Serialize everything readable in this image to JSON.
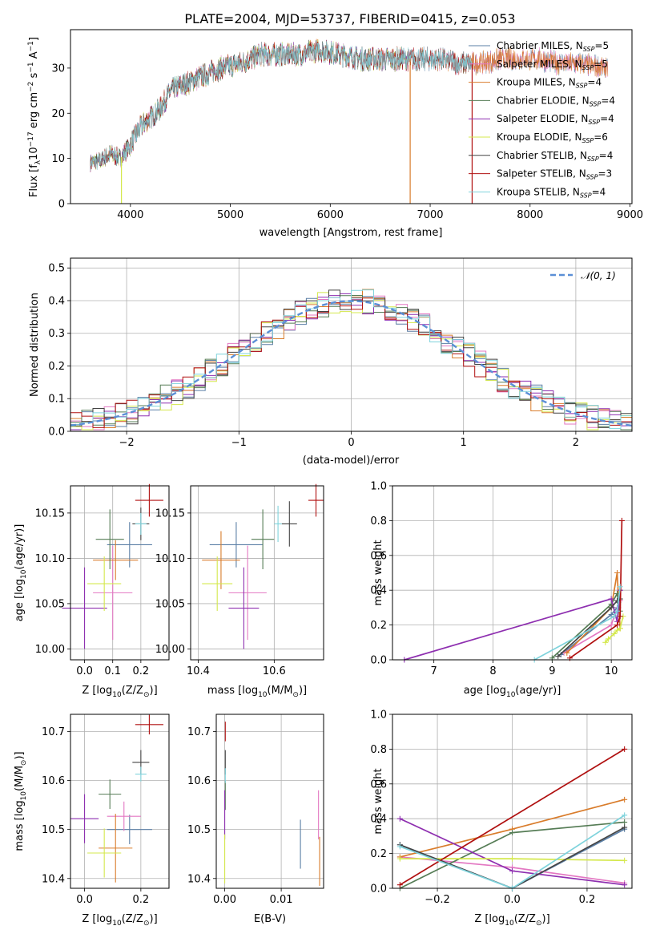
{
  "figure_title": "PLATE=2004, MJD=53737, FIBERID=0415, z=0.053",
  "colors": {
    "Chabrier MILES": "#5b7fa6",
    "Salpeter MILES": "#e377c2",
    "Kroupa MILES": "#d97c2b",
    "Chabrier ELODIE": "#557c55",
    "Salpeter ELODIE": "#8e2fb0",
    "Kroupa ELODIE": "#d4e84c",
    "Chabrier STELIB": "#444444",
    "Salpeter STELIB": "#b01010",
    "Kroupa STELIB": "#7fd3dc",
    "ncurve": "#5b8fd6"
  },
  "chart_data": [
    {
      "id": "spectrum",
      "type": "line",
      "title": "PLATE=2004, MJD=53737, FIBERID=0415, z=0.053",
      "xlabel": "wavelength [Angstrom, rest frame]",
      "ylabel_main": "Flux [f",
      "ylabel_sub1": "λ",
      "ylabel_mid": "10",
      "ylabel_sup1": "−17",
      "ylabel_mid2": " erg cm",
      "ylabel_sup2": "−2",
      "ylabel_mid3": " s",
      "ylabel_sup3": "−1",
      "ylabel_mid4": " A",
      "ylabel_sup4": "−1",
      "ylabel_end": "]",
      "xlim": [
        3400,
        9020
      ],
      "ylim": [
        0,
        38.5
      ],
      "xticks": [
        4000,
        5000,
        6000,
        7000,
        8000,
        9000
      ],
      "yticks": [
        0,
        10,
        20,
        30
      ],
      "grid": false,
      "legend_position": "top-right",
      "continuum": {
        "x": [
          3600,
          3700,
          3800,
          3900,
          4000,
          4100,
          4200,
          4300,
          4400,
          4500,
          4700,
          4900,
          5100,
          5300,
          5500,
          5700,
          5900,
          6100,
          6300,
          6500,
          6700,
          6900,
          7100,
          7300,
          7500,
          7700,
          7900,
          8100,
          8300,
          8500,
          8750
        ],
        "y": [
          9,
          9.5,
          11,
          10,
          13,
          17,
          19,
          21,
          25,
          26,
          28,
          30,
          31,
          33,
          33,
          33,
          34,
          33,
          32,
          32,
          32,
          32,
          32,
          31,
          31,
          32,
          32,
          32,
          31,
          31,
          30
        ]
      },
      "legend": [
        {
          "name": "Chabrier MILES",
          "nssp": "5",
          "x_end": 8780
        },
        {
          "name": "Salpeter MILES",
          "nssp": "5",
          "x_end": 8780
        },
        {
          "name": "Kroupa MILES",
          "nssp": "4",
          "x_end": 8780
        },
        {
          "name": "Chabrier ELODIE",
          "nssp": "4",
          "x_end": 6800
        },
        {
          "name": "Salpeter ELODIE",
          "nssp": "4",
          "x_end": 6800
        },
        {
          "name": "Kroupa ELODIE",
          "nssp": "6",
          "x_end": 6800
        },
        {
          "name": "Chabrier STELIB",
          "nssp": "4",
          "x_end": 7420
        },
        {
          "name": "Salpeter STELIB",
          "nssp": "3",
          "x_end": 7420
        },
        {
          "name": "Kroupa STELIB",
          "nssp": "4",
          "x_end": 7420
        }
      ]
    },
    {
      "id": "residuals",
      "type": "histogram",
      "xlabel": "(data-model)/error",
      "ylabel": "Normed distribution",
      "xlim": [
        -2.5,
        2.5
      ],
      "ylim": [
        0,
        0.53
      ],
      "xticks": [
        -2,
        -1,
        0,
        1,
        2
      ],
      "xtick_labels": [
        "−2",
        "−1",
        "0",
        "1",
        "2"
      ],
      "yticks": [
        0.0,
        0.1,
        0.2,
        0.3,
        0.4,
        0.5
      ],
      "ytick_labels": [
        "0.0",
        "0.1",
        "0.2",
        "0.3",
        "0.4",
        "0.5"
      ],
      "grid": true,
      "normal_curve_label": "𝒩(0, 1)",
      "bin_width": 0.1
    },
    {
      "id": "age_vs_Z",
      "type": "errorbar",
      "xlabel": "Z [log",
      "xlabel_sub": "10",
      "xlabel_end": "(Z/Z",
      "xlabel_sun": "⊙",
      "xlabel_close": ")]",
      "ylabel": "age  [log",
      "ylabel_sub": "10",
      "ylabel_end": "(age/yr)]",
      "xlim": [
        -0.05,
        0.3
      ],
      "ylim": [
        9.988,
        10.18
      ],
      "xticks": [
        0.0,
        0.1,
        0.2
      ],
      "xtick_labels": [
        "0.0",
        "0.1",
        "0.2"
      ],
      "yticks": [
        10.0,
        10.05,
        10.1,
        10.15
      ],
      "ytick_labels": [
        "10.00",
        "10.05",
        "10.10",
        "10.15"
      ],
      "points": [
        {
          "series": "Chabrier MILES",
          "x": 0.16,
          "xerr": 0.08,
          "y": 10.115,
          "yerr": 0.025
        },
        {
          "series": "Salpeter MILES",
          "x": 0.1,
          "xerr": 0.07,
          "y": 10.062,
          "yerr": 0.052
        },
        {
          "series": "Kroupa MILES",
          "x": 0.11,
          "xerr": 0.08,
          "y": 10.098,
          "yerr": 0.022
        },
        {
          "series": "Chabrier ELODIE",
          "x": 0.09,
          "xerr": 0.05,
          "y": 10.121,
          "yerr": 0.033
        },
        {
          "series": "Salpeter ELODIE",
          "x": 0.0,
          "xerr": 0.08,
          "y": 10.045,
          "yerr": 0.045
        },
        {
          "series": "Kroupa ELODIE",
          "x": 0.07,
          "xerr": 0.06,
          "y": 10.072,
          "yerr": 0.03
        },
        {
          "series": "Chabrier STELIB",
          "x": 0.2,
          "xerr": 0.03,
          "y": 10.138,
          "yerr": 0.018
        },
        {
          "series": "Salpeter STELIB",
          "x": 0.23,
          "xerr": 0.05,
          "y": 10.164,
          "yerr": 0.018
        },
        {
          "series": "Kroupa STELIB",
          "x": 0.2,
          "xerr": 0.02,
          "y": 10.138,
          "yerr": 0.012
        }
      ]
    },
    {
      "id": "age_vs_mass",
      "type": "errorbar",
      "xlabel": "mass [log",
      "xlabel_sub": "10",
      "xlabel_end": "(M/M",
      "xlabel_sun": "⊙",
      "xlabel_close": ")]",
      "xlim": [
        10.38,
        10.73
      ],
      "ylim": [
        9.988,
        10.18
      ],
      "xticks": [
        10.4,
        10.6
      ],
      "xtick_labels": [
        "10.4",
        "10.6"
      ],
      "yticks": [
        10.0,
        10.05,
        10.1,
        10.15
      ],
      "ytick_labels": [
        "10.00",
        "10.05",
        "10.10",
        "10.15"
      ],
      "points": [
        {
          "series": "Chabrier MILES",
          "x": 10.5,
          "xerr": 0.07,
          "y": 10.115,
          "yerr": 0.025
        },
        {
          "series": "Salpeter MILES",
          "x": 10.53,
          "xerr": 0.05,
          "y": 10.062,
          "yerr": 0.052
        },
        {
          "series": "Kroupa MILES",
          "x": 10.46,
          "xerr": 0.05,
          "y": 10.098,
          "yerr": 0.032
        },
        {
          "series": "Chabrier ELODIE",
          "x": 10.57,
          "xerr": 0.03,
          "y": 10.121,
          "yerr": 0.033
        },
        {
          "series": "Salpeter ELODIE",
          "x": 10.52,
          "xerr": 0.04,
          "y": 10.045,
          "yerr": 0.045
        },
        {
          "series": "Kroupa ELODIE",
          "x": 10.45,
          "xerr": 0.04,
          "y": 10.072,
          "yerr": 0.03
        },
        {
          "series": "Chabrier STELIB",
          "x": 10.64,
          "xerr": 0.02,
          "y": 10.138,
          "yerr": 0.025
        },
        {
          "series": "Salpeter STELIB",
          "x": 10.71,
          "xerr": 0.02,
          "y": 10.164,
          "yerr": 0.018
        },
        {
          "series": "Kroupa STELIB",
          "x": 10.61,
          "xerr": 0.01,
          "y": 10.138,
          "yerr": 0.02
        }
      ]
    },
    {
      "id": "mass_vs_Z",
      "type": "errorbar",
      "xlabel": "Z [log",
      "xlabel_sub": "10",
      "xlabel_end": "(Z/Z",
      "xlabel_sun": "⊙",
      "xlabel_close": ")]",
      "ylabel": "mass [log",
      "ylabel_sub": "10",
      "ylabel_end": "(M/M",
      "ylabel_sun": "⊙",
      "ylabel_close": ")]",
      "xlim": [
        -0.05,
        0.3
      ],
      "ylim": [
        10.38,
        10.735
      ],
      "xticks": [
        0.0,
        0.2
      ],
      "xtick_labels": [
        "0.0",
        "0.2"
      ],
      "yticks": [
        10.4,
        10.5,
        10.6,
        10.7
      ],
      "ytick_labels": [
        "10.4",
        "10.5",
        "10.6",
        "10.7"
      ],
      "points": [
        {
          "series": "Chabrier MILES",
          "x": 0.16,
          "xerr": 0.08,
          "y": 10.5,
          "yerr": 0.03
        },
        {
          "series": "Salpeter MILES",
          "x": 0.14,
          "xerr": 0.06,
          "y": 10.527,
          "yerr": 0.03
        },
        {
          "series": "Kroupa MILES",
          "x": 0.11,
          "xerr": 0.06,
          "y": 10.462,
          "yerr": 0.07
        },
        {
          "series": "Chabrier ELODIE",
          "x": 0.09,
          "xerr": 0.04,
          "y": 10.572,
          "yerr": 0.03
        },
        {
          "series": "Salpeter ELODIE",
          "x": 0.0,
          "xerr": 0.05,
          "y": 10.522,
          "yerr": 0.05
        },
        {
          "series": "Kroupa ELODIE",
          "x": 0.07,
          "xerr": 0.06,
          "y": 10.452,
          "yerr": 0.05
        },
        {
          "series": "Chabrier STELIB",
          "x": 0.2,
          "xerr": 0.03,
          "y": 10.637,
          "yerr": 0.025
        },
        {
          "series": "Salpeter STELIB",
          "x": 0.23,
          "xerr": 0.05,
          "y": 10.714,
          "yerr": 0.02
        },
        {
          "series": "Kroupa STELIB",
          "x": 0.2,
          "xerr": 0.02,
          "y": 10.613,
          "yerr": 0.015
        }
      ]
    },
    {
      "id": "mass_vs_ebv",
      "type": "errorbar",
      "xlabel": "E(B-V)",
      "xlim": [
        -0.0015,
        0.0175
      ],
      "ylim": [
        10.38,
        10.735
      ],
      "xticks": [
        0.0,
        0.01
      ],
      "xtick_labels": [
        "0.00",
        "0.01"
      ],
      "yticks": [
        10.4,
        10.5,
        10.6,
        10.7
      ],
      "ytick_labels": [
        "10.4",
        "10.5",
        "10.6",
        "10.7"
      ],
      "points": [
        {
          "series": "Chabrier MILES",
          "x": 0.0134,
          "xerr": 0,
          "y": 10.47,
          "yerr": 0.05
        },
        {
          "series": "Salpeter MILES",
          "x": 0.0166,
          "xerr": 0,
          "y": 10.53,
          "yerr": 0.05
        },
        {
          "series": "Kroupa MILES",
          "x": 0.0168,
          "xerr": 0,
          "y": 10.435,
          "yerr": 0.05
        },
        {
          "series": "Chabrier ELODIE",
          "x": 0.0001,
          "xerr": 0,
          "y": 10.57,
          "yerr": 0.03
        },
        {
          "series": "Salpeter ELODIE",
          "x": 0.0,
          "xerr": 0,
          "y": 10.53,
          "yerr": 0.05
        },
        {
          "series": "Kroupa ELODIE",
          "x": 0.0,
          "xerr": 0,
          "y": 10.44,
          "yerr": 0.05
        },
        {
          "series": "Chabrier STELIB",
          "x": 0.0001,
          "xerr": 0,
          "y": 10.637,
          "yerr": 0.025
        },
        {
          "series": "Salpeter STELIB",
          "x": 0.0001,
          "xerr": 0,
          "y": 10.7,
          "yerr": 0.02
        },
        {
          "series": "Kroupa STELIB",
          "x": 0.0001,
          "xerr": 0,
          "y": 10.61,
          "yerr": 0.015
        }
      ]
    },
    {
      "id": "weight_vs_age",
      "type": "line",
      "xlabel": "age  [log",
      "xlabel_sub": "10",
      "xlabel_end": "(age/yr)]",
      "ylabel": "mass weight",
      "xlim": [
        6.3,
        10.35
      ],
      "ylim": [
        0,
        1.0
      ],
      "xticks": [
        7,
        8,
        9,
        10
      ],
      "yticks": [
        0.0,
        0.2,
        0.4,
        0.6,
        0.8,
        1.0
      ],
      "ytick_labels": [
        "0.0",
        "0.2",
        "0.4",
        "0.6",
        "0.8",
        "1.0"
      ],
      "grid": true,
      "series": [
        {
          "name": "Chabrier MILES",
          "x": [
            9.15,
            10.0,
            10.1,
            10.12,
            10.15
          ],
          "y": [
            0.03,
            0.26,
            0.3,
            0.33,
            0.4
          ]
        },
        {
          "name": "Salpeter MILES",
          "x": [
            9.2,
            10.0,
            10.05,
            10.12,
            10.15
          ],
          "y": [
            0.04,
            0.2,
            0.25,
            0.3,
            0.34
          ]
        },
        {
          "name": "Kroupa MILES",
          "x": [
            9.25,
            10.0,
            10.1,
            10.15
          ],
          "y": [
            0.04,
            0.3,
            0.5,
            0.18
          ]
        },
        {
          "name": "Chabrier ELODIE",
          "x": [
            9.0,
            10.0,
            10.1,
            10.15
          ],
          "y": [
            0.01,
            0.32,
            0.38,
            0.28
          ]
        },
        {
          "name": "Salpeter ELODIE",
          "x": [
            6.5,
            10.0,
            10.1,
            10.15
          ],
          "y": [
            0.0,
            0.35,
            0.22,
            0.4
          ]
        },
        {
          "name": "Kroupa ELODIE",
          "x": [
            9.9,
            9.95,
            10.05,
            10.1,
            10.15,
            10.2
          ],
          "y": [
            0.1,
            0.12,
            0.15,
            0.17,
            0.18,
            0.25
          ]
        },
        {
          "name": "Chabrier STELIB",
          "x": [
            9.1,
            10.0,
            10.1,
            10.15
          ],
          "y": [
            0.02,
            0.3,
            0.34,
            0.35
          ]
        },
        {
          "name": "Salpeter STELIB",
          "x": [
            9.3,
            10.1,
            10.15,
            10.18
          ],
          "y": [
            0.01,
            0.2,
            0.25,
            0.8
          ]
        },
        {
          "name": "Kroupa STELIB",
          "x": [
            8.7,
            10.05,
            10.1,
            10.15
          ],
          "y": [
            0.0,
            0.25,
            0.28,
            0.42
          ]
        }
      ]
    },
    {
      "id": "weight_vs_Z",
      "type": "line",
      "xlabel": "Z [log",
      "xlabel_sub": "10",
      "xlabel_end": "(Z/Z",
      "xlabel_sun": "⊙",
      "xlabel_close": ")]",
      "ylabel": "mass weight",
      "xlim": [
        -0.32,
        0.32
      ],
      "ylim": [
        0,
        1.0
      ],
      "xticks": [
        -0.2,
        0.0,
        0.2
      ],
      "xtick_labels": [
        "−0.2",
        "0.0",
        "0.2"
      ],
      "yticks": [
        0.0,
        0.2,
        0.4,
        0.6,
        0.8,
        1.0
      ],
      "ytick_labels": [
        "0.0",
        "0.2",
        "0.4",
        "0.6",
        "0.8",
        "1.0"
      ],
      "grid": true,
      "series": [
        {
          "name": "Chabrier MILES",
          "x": [
            -0.3,
            0.0,
            0.3
          ],
          "y": [
            0.25,
            0.0,
            0.34
          ]
        },
        {
          "name": "Salpeter MILES",
          "x": [
            -0.3,
            0.0,
            0.3
          ],
          "y": [
            0.18,
            0.12,
            0.03
          ]
        },
        {
          "name": "Kroupa MILES",
          "x": [
            -0.3,
            0.0,
            0.3
          ],
          "y": [
            0.18,
            0.34,
            0.51
          ]
        },
        {
          "name": "Chabrier ELODIE",
          "x": [
            -0.3,
            0.0,
            0.3
          ],
          "y": [
            0.0,
            0.32,
            0.38
          ]
        },
        {
          "name": "Salpeter ELODIE",
          "x": [
            -0.3,
            0.0,
            0.3
          ],
          "y": [
            0.4,
            0.1,
            0.02
          ]
        },
        {
          "name": "Kroupa ELODIE",
          "x": [
            -0.3,
            0.0,
            0.3
          ],
          "y": [
            0.17,
            0.17,
            0.16
          ]
        },
        {
          "name": "Chabrier STELIB",
          "x": [
            -0.3,
            0.0,
            0.3
          ],
          "y": [
            0.25,
            0.0,
            0.35
          ]
        },
        {
          "name": "Salpeter STELIB",
          "x": [
            -0.3,
            0.3
          ],
          "y": [
            0.02,
            0.8
          ]
        },
        {
          "name": "Kroupa STELIB",
          "x": [
            -0.3,
            0.0,
            0.3
          ],
          "y": [
            0.24,
            0.0,
            0.42
          ]
        }
      ]
    }
  ]
}
